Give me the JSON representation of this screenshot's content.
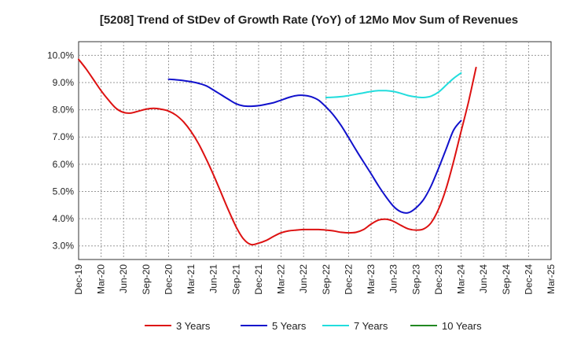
{
  "chart_data": {
    "type": "line",
    "title": "[5208]  Trend of StDev of Growth Rate (YoY) of 12Mo Mov Sum of Revenues",
    "xlabel": "",
    "ylabel": "",
    "ylim": [
      2.5,
      10.5
    ],
    "yticks": [
      3.0,
      4.0,
      5.0,
      6.0,
      7.0,
      8.0,
      9.0,
      10.0
    ],
    "ytick_labels": [
      "3.0%",
      "4.0%",
      "5.0%",
      "6.0%",
      "7.0%",
      "8.0%",
      "9.0%",
      "10.0%"
    ],
    "x_tick_labels": [
      "Dec-19",
      "Mar-20",
      "Jun-20",
      "Sep-20",
      "Dec-20",
      "Mar-21",
      "Jun-21",
      "Sep-21",
      "Dec-21",
      "Mar-22",
      "Jun-22",
      "Sep-22",
      "Dec-22",
      "Mar-23",
      "Jun-23",
      "Sep-23",
      "Dec-23",
      "Mar-24",
      "Jun-24",
      "Sep-24",
      "Dec-24",
      "Mar-25"
    ],
    "grid": true,
    "legend_position": "bottom",
    "series": [
      {
        "name": "3 Years",
        "color": "#dd1111",
        "start_index": 0,
        "values": [
          9.85,
          9.5,
          9.1,
          8.7,
          8.35,
          8.05,
          7.9,
          7.88,
          7.95,
          8.02,
          8.05,
          8.02,
          7.95,
          7.8,
          7.55,
          7.2,
          6.75,
          6.2,
          5.6,
          4.95,
          4.3,
          3.7,
          3.25,
          3.05,
          3.1,
          3.2,
          3.35,
          3.48,
          3.55,
          3.58,
          3.6,
          3.6,
          3.6,
          3.58,
          3.55,
          3.5,
          3.48,
          3.5,
          3.6,
          3.8,
          3.95,
          3.98,
          3.9,
          3.75,
          3.62,
          3.58,
          3.62,
          3.85,
          4.35,
          5.1,
          6.1,
          7.2,
          8.3,
          9.55
        ]
      },
      {
        "name": "5 Years",
        "color": "#1111cc",
        "start_index": 12,
        "values": [
          9.12,
          9.1,
          9.07,
          9.03,
          8.97,
          8.88,
          8.72,
          8.55,
          8.38,
          8.22,
          8.14,
          8.13,
          8.15,
          8.2,
          8.26,
          8.35,
          8.45,
          8.52,
          8.53,
          8.48,
          8.35,
          8.1,
          7.8,
          7.42,
          6.98,
          6.52,
          6.08,
          5.65,
          5.2,
          4.8,
          4.45,
          4.25,
          4.22,
          4.4,
          4.7,
          5.2,
          5.85,
          6.55,
          7.25,
          7.6
        ]
      },
      {
        "name": "7 Years",
        "color": "#22dddd",
        "start_index": 33,
        "values": [
          8.45,
          8.46,
          8.48,
          8.52,
          8.57,
          8.62,
          8.67,
          8.7,
          8.7,
          8.67,
          8.6,
          8.52,
          8.47,
          8.45,
          8.5,
          8.65,
          8.9,
          9.15,
          9.35
        ]
      },
      {
        "name": "10 Years",
        "color": "#228822",
        "start_index": 0,
        "values": []
      }
    ]
  }
}
